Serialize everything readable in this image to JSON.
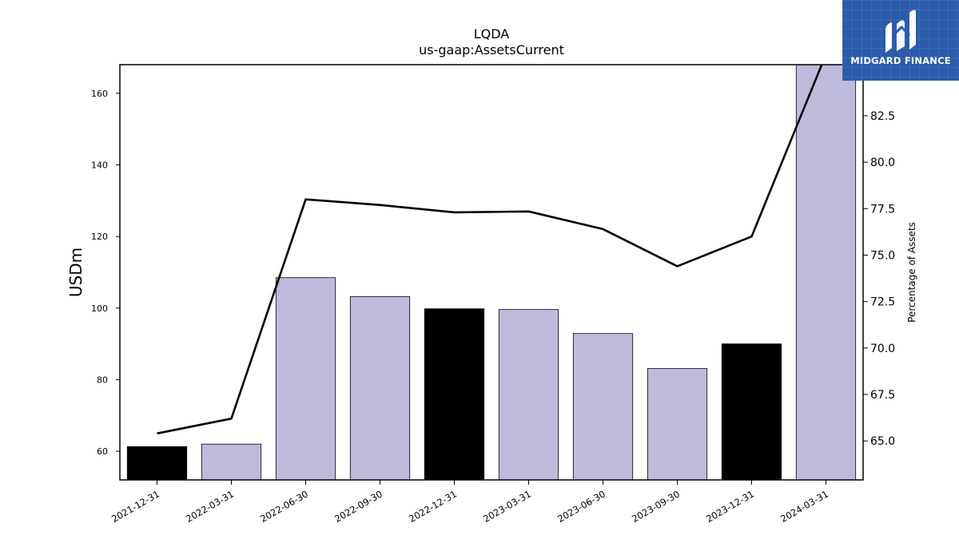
{
  "chart_data": {
    "type": "bar",
    "title": "LQDA",
    "subtitle": "us-gaap:AssetsCurrent",
    "ylabel": "USDm",
    "y2label": "Percentage of Assets",
    "categories": [
      "2021-12-31",
      "2022-03-31",
      "2022-06-30",
      "2022-09-30",
      "2022-12-31",
      "2023-03-31",
      "2023-06-30",
      "2023-09-30",
      "2023-12-31",
      "2024-03-31"
    ],
    "values": [
      61.3,
      62.0,
      108.5,
      103.2,
      99.8,
      99.6,
      92.9,
      83.1,
      90.0,
      168.5
    ],
    "bar_colors": [
      "#000000",
      "#bebbda",
      "#bebbda",
      "#bebbda",
      "#000000",
      "#bebbda",
      "#bebbda",
      "#bebbda",
      "#000000",
      "#bebbda"
    ],
    "ylim": [
      52,
      168
    ],
    "yticks": [
      60,
      80,
      100,
      120,
      140,
      160
    ],
    "line": {
      "values": [
        65.4,
        66.2,
        78.0,
        77.7,
        77.3,
        77.35,
        76.4,
        74.4,
        76.0,
        85.8
      ],
      "color": "#000000"
    },
    "y2lim": [
      62.9,
      85.25
    ],
    "y2ticks": [
      65.0,
      67.5,
      70.0,
      72.5,
      75.0,
      77.5,
      80.0,
      82.5
    ],
    "grid": false,
    "legend": "none"
  },
  "logo": {
    "text": "MIDGARD FINANCE",
    "bg_color": "#2b5bab"
  }
}
